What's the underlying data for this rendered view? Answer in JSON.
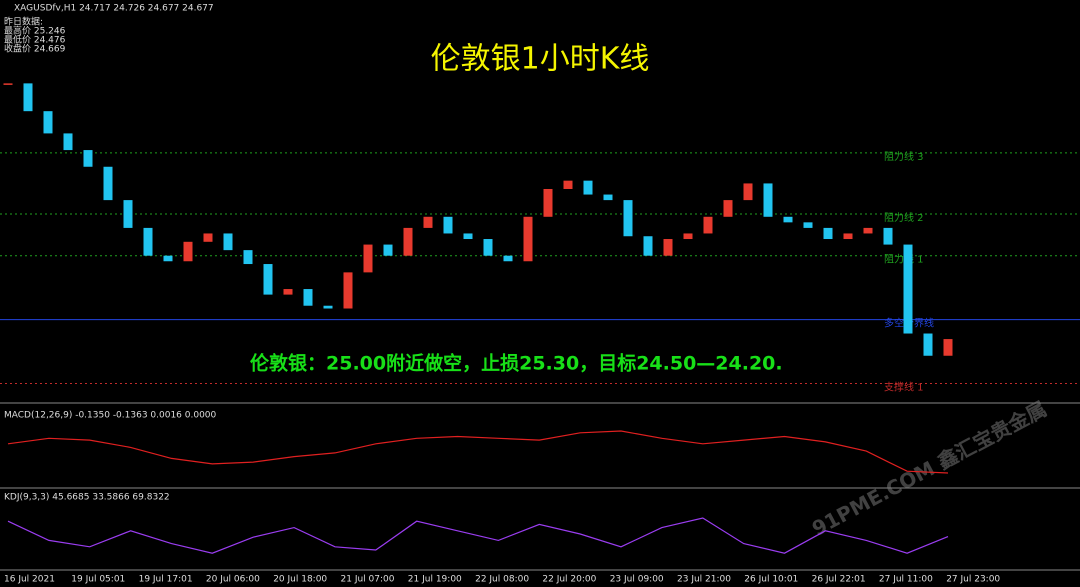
{
  "chart_data": {
    "type": "candlestick",
    "symbol_header": "XAGUSDfv,H1  24.717 24.726 24.677 24.677",
    "info_lines": [
      "昨日数据:",
      "最高价 25.246",
      "最低价 24.476",
      "收盘价 24.669"
    ],
    "title": "伦敦银1小时K线",
    "annotation": "伦敦银：25.00附近做空，止损25.30，目标24.50—24.20.",
    "watermark": "91PME.COM 鑫汇宝贵金属",
    "colors": {
      "up": "#e83a2e",
      "down": "#22c4f0"
    },
    "ylim": [
      24.45,
      25.9
    ],
    "values": [
      25.6,
      25.5,
      25.42,
      25.36,
      25.3,
      25.18,
      25.08,
      24.98,
      24.96,
      25.03,
      25.06,
      25.0,
      24.95,
      24.84,
      24.86,
      24.8,
      24.79,
      24.92,
      25.02,
      24.98,
      25.08,
      25.12,
      25.06,
      25.04,
      24.98,
      24.96,
      25.12,
      25.22,
      25.25,
      25.2,
      25.18,
      25.05,
      24.98,
      25.04,
      25.06,
      25.12,
      25.18,
      25.24,
      25.12,
      25.1,
      25.08,
      25.04,
      25.06,
      25.08,
      25.02,
      24.7,
      24.62,
      24.68
    ],
    "levels": [
      {
        "label": "阻力线 3",
        "value": 25.35,
        "color": "#1fa01f"
      },
      {
        "label": "阻力线 2",
        "value": 25.13,
        "color": "#1fa01f"
      },
      {
        "label": "阻力线 1",
        "value": 24.98,
        "color": "#1fa01f"
      },
      {
        "label": "多空分界线",
        "value": 24.75,
        "color": "#2344e0"
      },
      {
        "label": "支撑线 1",
        "value": 24.52,
        "color": "#c02a2a"
      }
    ],
    "x_labels": [
      "16 Jul 2021",
      "19 Jul 05:01",
      "19 Jul 17:01",
      "20 Jul 06:00",
      "20 Jul 18:00",
      "21 Jul 07:00",
      "21 Jul 19:00",
      "22 Jul 08:00",
      "22 Jul 20:00",
      "23 Jul 09:00",
      "23 Jul 21:00",
      "26 Jul 10:01",
      "26 Jul 22:01",
      "27 Jul 11:00",
      "27 Jul 23:00"
    ],
    "macd": {
      "header": "MACD(12,26,9) -0.1350 -0.1363 0.0016 0.0000",
      "color": "#e02020",
      "ylim": [
        -0.2,
        0.15
      ],
      "values": [
        0.02,
        0.05,
        0.04,
        0.0,
        -0.06,
        -0.09,
        -0.08,
        -0.05,
        -0.03,
        0.02,
        0.05,
        0.06,
        0.05,
        0.04,
        0.08,
        0.09,
        0.05,
        0.02,
        0.04,
        0.06,
        0.03,
        -0.02,
        -0.13,
        -0.14
      ]
    },
    "kdj": {
      "header": "KDJ(9,3,3) 45.6685 33.5866 69.8322",
      "color": "#9a3df0",
      "ylim": [
        0,
        100
      ],
      "values": [
        70,
        40,
        30,
        55,
        35,
        20,
        45,
        60,
        30,
        25,
        70,
        55,
        40,
        65,
        50,
        30,
        60,
        75,
        35,
        20,
        55,
        40,
        20,
        46
      ]
    }
  }
}
